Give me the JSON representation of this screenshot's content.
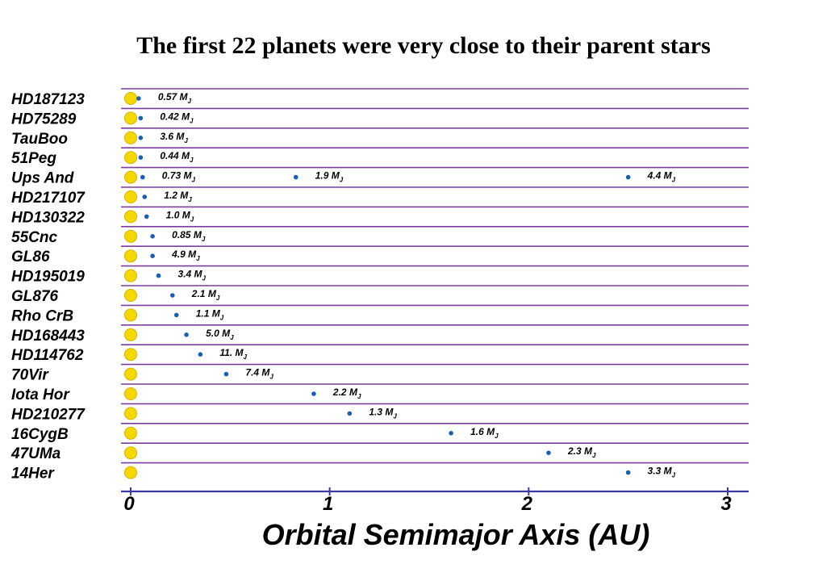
{
  "title": "The first 22 planets were very close to their parent stars",
  "colors": {
    "star": "#f5d800",
    "star_outline": "#d4b400",
    "planet": "#1a5fb4",
    "row_line": "#7a3f9e",
    "axis": "#3a3aa8"
  },
  "chart_data": {
    "type": "scatter",
    "title": "The first 22 planets were very close to their parent stars",
    "xlabel": "Orbital Semimajor Axis  (AU)",
    "ylabel": "",
    "xlim": [
      0,
      3
    ],
    "xticks": [
      "0",
      "1",
      "2",
      "3"
    ],
    "mass_unit": "M",
    "mass_sub": "J",
    "systems": [
      {
        "name": "HD187123",
        "planets": [
          {
            "a": 0.04,
            "mass": "0.57"
          }
        ]
      },
      {
        "name": "HD75289",
        "planets": [
          {
            "a": 0.05,
            "mass": "0.42"
          }
        ]
      },
      {
        "name": "TauBoo",
        "planets": [
          {
            "a": 0.05,
            "mass": "3.6"
          }
        ]
      },
      {
        "name": "51Peg",
        "planets": [
          {
            "a": 0.05,
            "mass": "0.44"
          }
        ]
      },
      {
        "name": "Ups And",
        "planets": [
          {
            "a": 0.06,
            "mass": "0.73"
          },
          {
            "a": 0.83,
            "mass": "1.9"
          },
          {
            "a": 2.5,
            "mass": "4.4"
          }
        ]
      },
      {
        "name": "HD217107",
        "planets": [
          {
            "a": 0.07,
            "mass": "1.2"
          }
        ]
      },
      {
        "name": "HD130322",
        "planets": [
          {
            "a": 0.08,
            "mass": "1.0"
          }
        ]
      },
      {
        "name": "55Cnc",
        "planets": [
          {
            "a": 0.11,
            "mass": "0.85"
          }
        ]
      },
      {
        "name": "GL86",
        "planets": [
          {
            "a": 0.11,
            "mass": "4.9"
          }
        ]
      },
      {
        "name": "HD195019",
        "planets": [
          {
            "a": 0.14,
            "mass": "3.4"
          }
        ]
      },
      {
        "name": "GL876",
        "planets": [
          {
            "a": 0.21,
            "mass": "2.1"
          }
        ]
      },
      {
        "name": "Rho CrB",
        "planets": [
          {
            "a": 0.23,
            "mass": "1.1"
          }
        ]
      },
      {
        "name": "HD168443",
        "planets": [
          {
            "a": 0.28,
            "mass": "5.0"
          }
        ]
      },
      {
        "name": "HD114762",
        "planets": [
          {
            "a": 0.35,
            "mass": "11."
          }
        ]
      },
      {
        "name": "70Vir",
        "planets": [
          {
            "a": 0.48,
            "mass": "7.4"
          }
        ]
      },
      {
        "name": "Iota Hor",
        "planets": [
          {
            "a": 0.92,
            "mass": "2.2"
          }
        ]
      },
      {
        "name": "HD210277",
        "planets": [
          {
            "a": 1.1,
            "mass": "1.3"
          }
        ]
      },
      {
        "name": "16CygB",
        "planets": [
          {
            "a": 1.61,
            "mass": "1.6"
          }
        ]
      },
      {
        "name": "47UMa",
        "planets": [
          {
            "a": 2.1,
            "mass": "2.3"
          }
        ]
      },
      {
        "name": "14Her",
        "planets": [
          {
            "a": 2.5,
            "mass": "3.3"
          }
        ]
      }
    ]
  }
}
